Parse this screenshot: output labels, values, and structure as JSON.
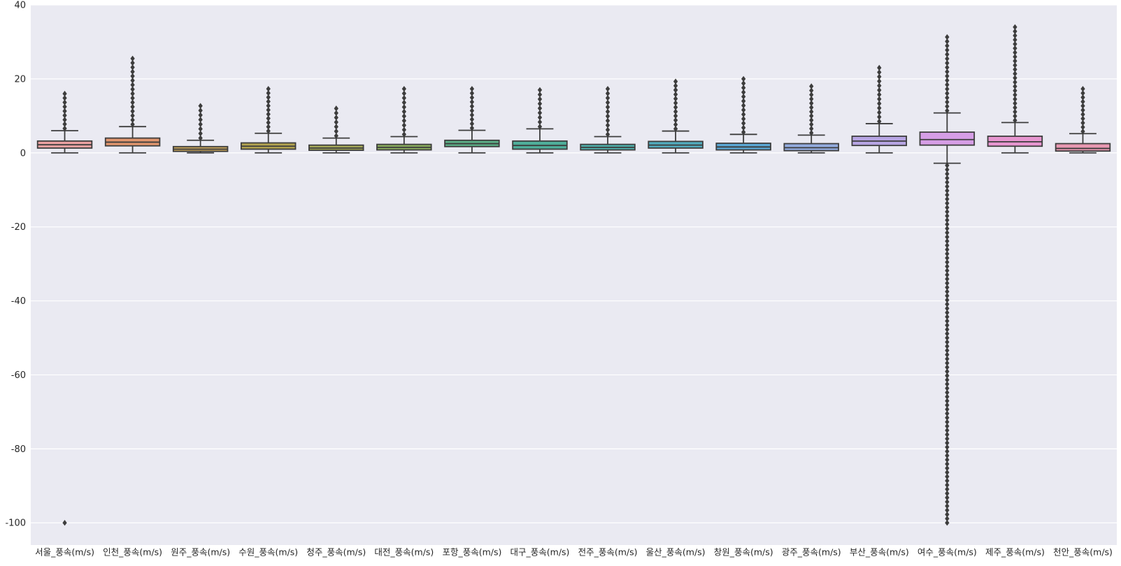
{
  "chart_data": {
    "type": "box",
    "title": "",
    "xlabel": "",
    "ylabel": "",
    "ylim": [
      -106,
      40
    ],
    "yticks": [
      -100,
      -80,
      -60,
      -40,
      -20,
      0,
      20,
      40
    ],
    "ytick_labels": [
      "-100",
      "-80",
      "-60",
      "-40",
      "-20",
      "0",
      "20",
      "40"
    ],
    "grid": true,
    "background_color": "#eaeaf2",
    "categories": [
      "서울_풍속(m/s)",
      "인천_풍속(m/s)",
      "원주_풍속(m/s)",
      "수원_풍속(m/s)",
      "청주_풍속(m/s)",
      "대전_풍속(m/s)",
      "포항_풍속(m/s)",
      "대구_풍속(m/s)",
      "전주_풍속(m/s)",
      "울산_풍속(m/s)",
      "창원_풍속(m/s)",
      "광주_풍속(m/s)",
      "부산_풍속(m/s)",
      "여수_풍속(m/s)",
      "제주_풍속(m/s)",
      "천안_풍속(m/s)"
    ],
    "colors": [
      "#e8a0a0",
      "#e0956e",
      "#c5a35c",
      "#b3a450",
      "#a4a858",
      "#8aac5e",
      "#5bae86",
      "#4fae9a",
      "#4fafab",
      "#52abbd",
      "#5aa6d3",
      "#93acdf",
      "#b6a4e2",
      "#d69ee6",
      "#e695cf",
      "#e898b1"
    ],
    "boxes": [
      {
        "whisker_low": 0,
        "q1": 1.3,
        "median": 2.2,
        "q3": 3.2,
        "whisker_high": 6.0,
        "outlier_low": null,
        "outlier_high": 16.0,
        "extra_outliers": [
          -100
        ]
      },
      {
        "whisker_low": 0,
        "q1": 1.9,
        "median": 2.9,
        "q3": 4.0,
        "whisker_high": 7.1,
        "outlier_low": null,
        "outlier_high": 25.5,
        "extra_outliers": []
      },
      {
        "whisker_low": 0,
        "q1": 0.4,
        "median": 1.0,
        "q3": 1.7,
        "whisker_high": 3.4,
        "outlier_low": null,
        "outlier_high": 12.7,
        "extra_outliers": []
      },
      {
        "whisker_low": 0,
        "q1": 1.0,
        "median": 1.8,
        "q3": 2.7,
        "whisker_high": 5.3,
        "outlier_low": null,
        "outlier_high": 17.3,
        "extra_outliers": []
      },
      {
        "whisker_low": 0,
        "q1": 0.7,
        "median": 1.3,
        "q3": 2.1,
        "whisker_high": 4.0,
        "outlier_low": null,
        "outlier_high": 12.0,
        "extra_outliers": []
      },
      {
        "whisker_low": 0,
        "q1": 0.8,
        "median": 1.5,
        "q3": 2.3,
        "whisker_high": 4.4,
        "outlier_low": null,
        "outlier_high": 17.3,
        "extra_outliers": []
      },
      {
        "whisker_low": 0,
        "q1": 1.7,
        "median": 2.5,
        "q3": 3.4,
        "whisker_high": 6.1,
        "outlier_low": null,
        "outlier_high": 17.3,
        "extra_outliers": []
      },
      {
        "whisker_low": 0,
        "q1": 1.0,
        "median": 2.0,
        "q3": 3.2,
        "whisker_high": 6.5,
        "outlier_low": null,
        "outlier_high": 17.0,
        "extra_outliers": []
      },
      {
        "whisker_low": 0,
        "q1": 0.8,
        "median": 1.5,
        "q3": 2.3,
        "whisker_high": 4.4,
        "outlier_low": null,
        "outlier_high": 17.3,
        "extra_outliers": []
      },
      {
        "whisker_low": 0,
        "q1": 1.3,
        "median": 2.1,
        "q3": 3.1,
        "whisker_high": 5.9,
        "outlier_low": null,
        "outlier_high": 19.3,
        "extra_outliers": [
          17.0
        ]
      },
      {
        "whisker_low": 0,
        "q1": 0.8,
        "median": 1.6,
        "q3": 2.6,
        "whisker_high": 5.0,
        "outlier_low": null,
        "outlier_high": 20.0,
        "extra_outliers": []
      },
      {
        "whisker_low": 0,
        "q1": 0.6,
        "median": 1.4,
        "q3": 2.5,
        "whisker_high": 4.8,
        "outlier_low": null,
        "outlier_high": 18.0,
        "extra_outliers": []
      },
      {
        "whisker_low": 0,
        "q1": 2.0,
        "median": 3.2,
        "q3": 4.5,
        "whisker_high": 7.9,
        "outlier_low": null,
        "outlier_high": 23.0,
        "extra_outliers": []
      },
      {
        "whisker_low": -2.8,
        "q1": 2.1,
        "median": 3.6,
        "q3": 5.6,
        "whisker_high": 10.8,
        "outlier_low": -100,
        "outlier_high": 31.3,
        "extra_outliers": []
      },
      {
        "whisker_low": 0,
        "q1": 1.8,
        "median": 3.0,
        "q3": 4.5,
        "whisker_high": 8.2,
        "outlier_low": null,
        "outlier_high": 34.0,
        "extra_outliers": []
      },
      {
        "whisker_low": 0,
        "q1": 0.5,
        "median": 1.2,
        "q3": 2.5,
        "whisker_high": 5.2,
        "outlier_low": null,
        "outlier_high": 17.3,
        "extra_outliers": []
      }
    ]
  }
}
